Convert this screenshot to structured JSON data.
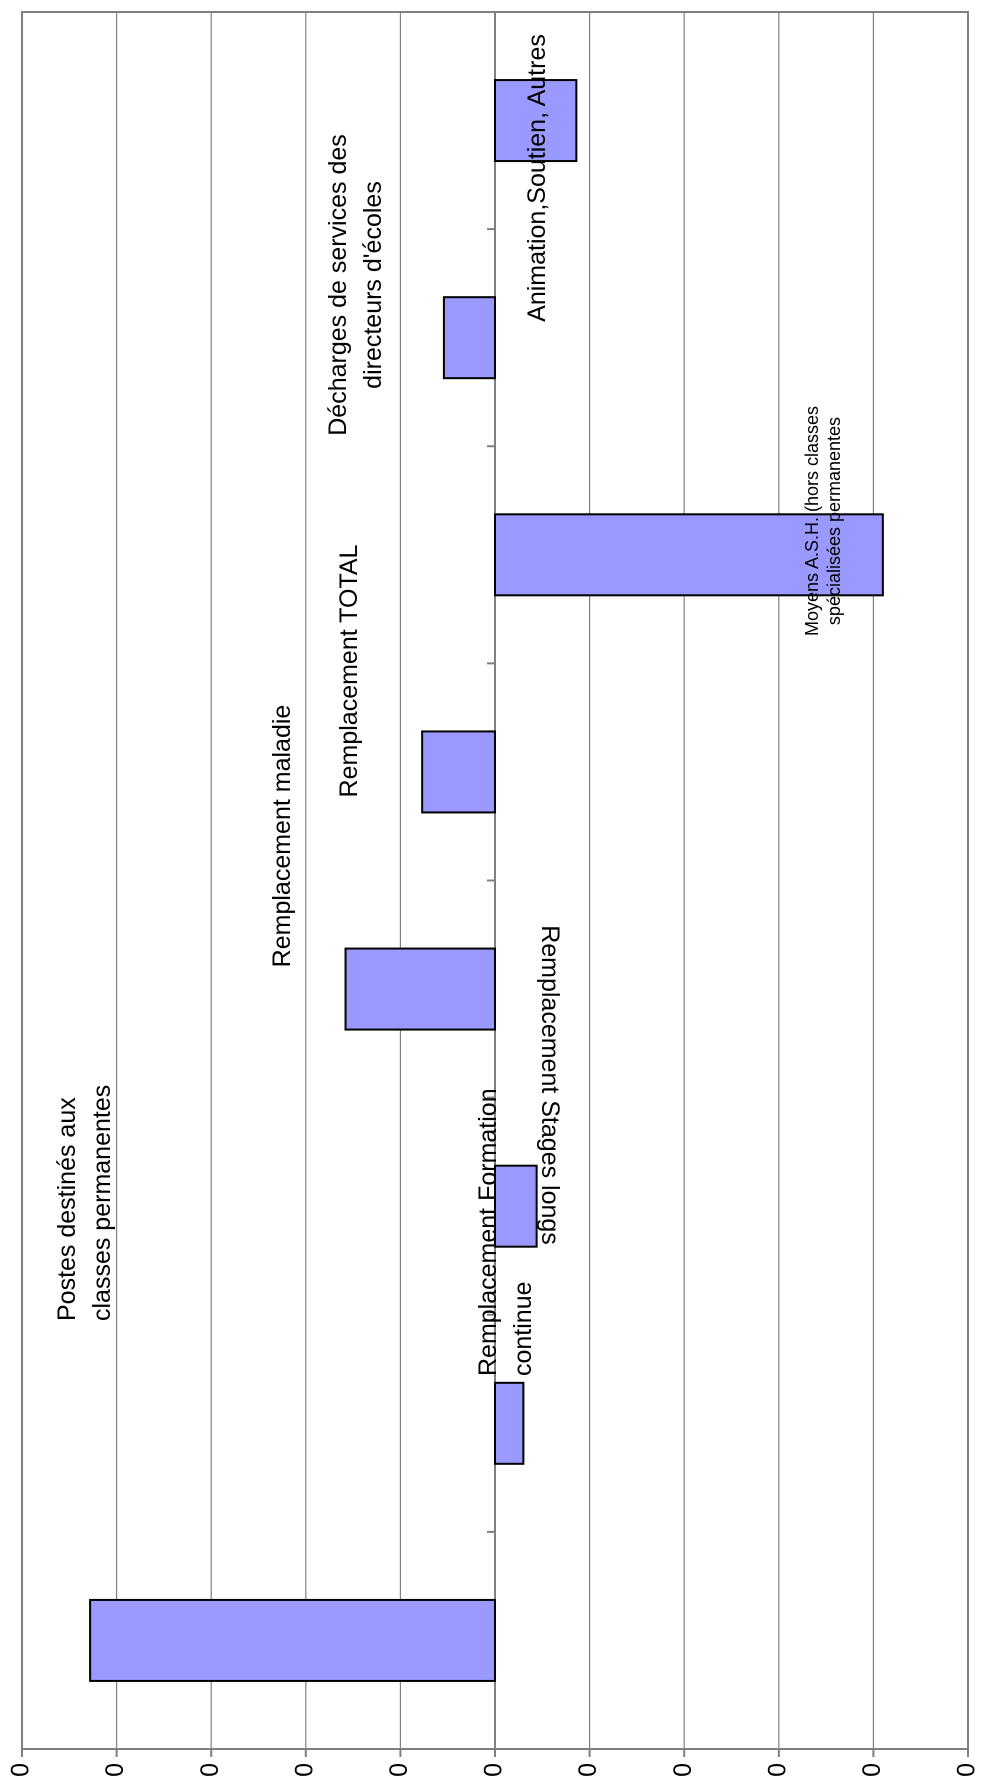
{
  "chart_data": {
    "type": "bar",
    "orientation": "rotated",
    "categories": [
      "Postes destinés aux classes permanentes",
      "Remplacement Formation continue",
      "Remplacement Stages longs",
      "Remplacement maladie",
      "Remplacement TOTAL",
      "Moyens A.S.H. (hors classes spécialisées permanentes",
      "Décharges de services des directeurs d'écoles",
      "Animation,Soutien, Autres"
    ],
    "values": [
      2140,
      -150,
      -220,
      790,
      385,
      -2050,
      270,
      -430
    ],
    "ylim": [
      -2500,
      2500
    ],
    "yticks": [
      2500,
      2000,
      1500,
      1000,
      500,
      0,
      -500,
      -1000,
      -1500,
      -2000,
      -2500
    ],
    "grid": true,
    "bar_color": "#9999ff",
    "title": "",
    "xlabel": "",
    "ylabel": ""
  }
}
